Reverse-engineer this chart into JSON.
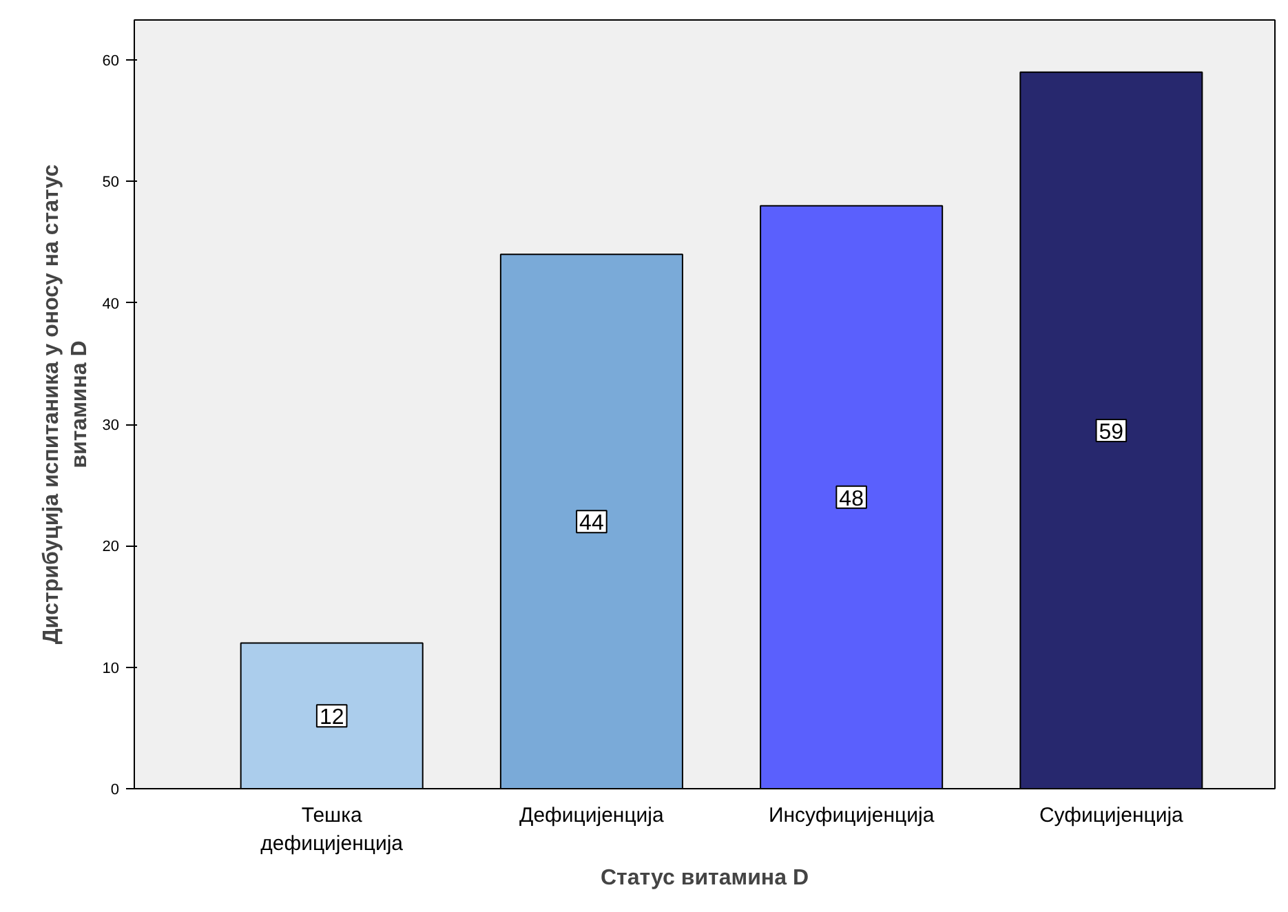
{
  "chart_data": {
    "type": "bar",
    "xlabel": "Статус витамина D",
    "ylabel": "Дистрибуција испитаника у оносу на статус\nвитамина D",
    "categories": [
      "Тешка\nдефицијенција",
      "Дефицијенција",
      "Инсуфицијенција",
      "Суфицијенција"
    ],
    "values": [
      12,
      44,
      48,
      59
    ],
    "colors": [
      "#abcdec",
      "#7aaad8",
      "#5a60fd",
      "#27286e"
    ],
    "ylim": [
      0,
      63.3
    ],
    "yticks": [
      0,
      10,
      20,
      30,
      40,
      50,
      60
    ],
    "grid": false,
    "data_labels": true
  }
}
